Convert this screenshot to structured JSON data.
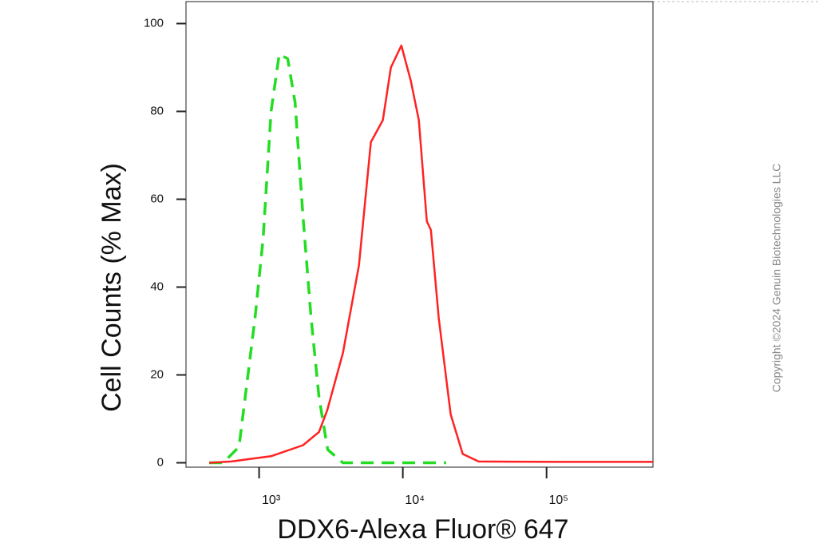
{
  "chart_data": {
    "type": "line",
    "x_label": "DDX6-Alexa Fluor® 647",
    "y_label": "Cell Counts (% Max)",
    "watermark": "Copyright ©2024 Genuin Biotechnologies LLC",
    "x_scale": "log",
    "xlim": [
      310,
      550000
    ],
    "ylim": [
      -1,
      105
    ],
    "xticks": [
      {
        "value": 1000,
        "label": "10³"
      },
      {
        "value": 10000,
        "label": "10⁴"
      },
      {
        "value": 100000,
        "label": "10⁵"
      }
    ],
    "yticks": [
      0,
      20,
      40,
      60,
      80,
      100
    ],
    "series": [
      {
        "color": "#22dd22",
        "dash": true,
        "x": [
          450,
          562,
          725,
          937,
          1066,
          1211,
          1380,
          1580,
          1780,
          2020,
          2300,
          2610,
          3000,
          3830,
          5000,
          10000,
          20000
        ],
        "values": [
          0,
          0,
          3.6,
          33,
          51,
          80,
          93,
          92,
          82,
          56,
          33,
          15,
          3,
          0,
          0,
          0,
          0
        ]
      },
      {
        "color": "#ff2222",
        "dash": false,
        "x": [
          450,
          640,
          1210,
          2020,
          2610,
          2980,
          3830,
          4950,
          5990,
          7260,
          8260,
          9770,
          11360,
          12920,
          14690,
          15670,
          17780,
          21540,
          26100,
          33700,
          121000,
          550000
        ],
        "values": [
          0,
          0.3,
          1.5,
          4,
          7,
          12,
          25,
          45,
          73,
          78,
          90,
          95,
          87,
          78,
          55,
          53,
          33,
          11,
          2,
          0.3,
          0.2,
          0.2
        ]
      }
    ]
  }
}
